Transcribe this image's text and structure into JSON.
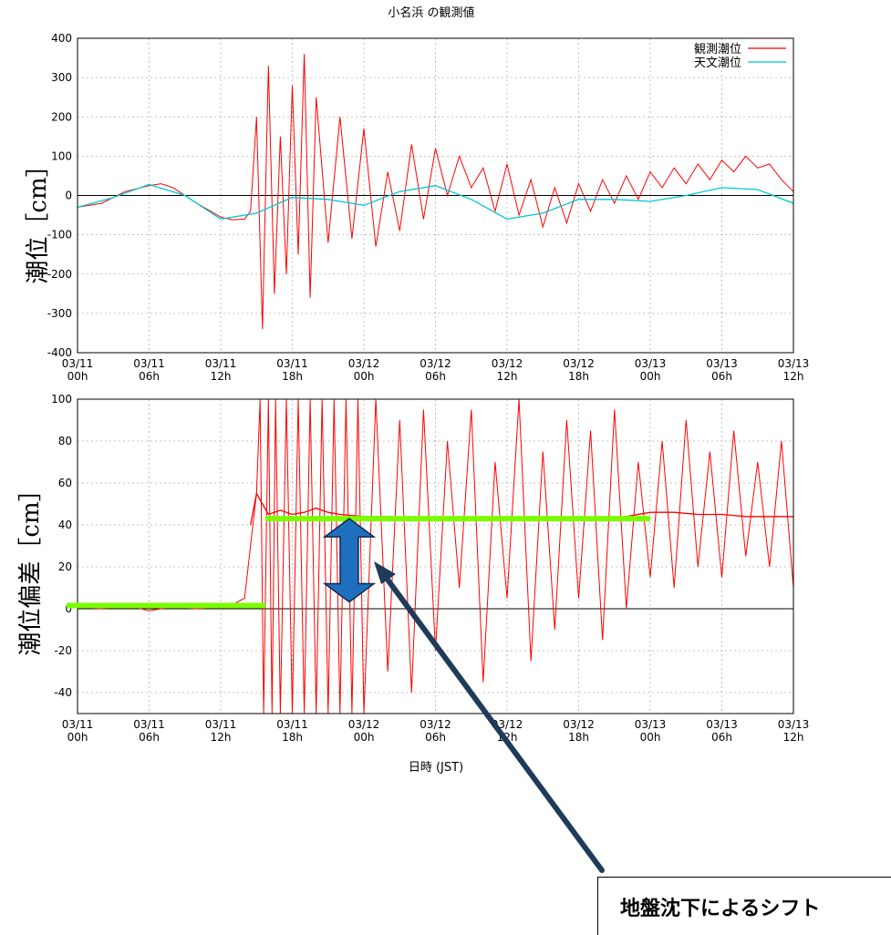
{
  "page_title": "小名浜 の観測値",
  "xlabel": "日時 (JST)",
  "callout_text": "地盤沈下によるシフト",
  "colors": {
    "observed": "#ff0000",
    "astronomical": "#00c8d2",
    "baseline": "#7cfc00",
    "arrow": "#1f6fbf",
    "pointer": "#1f3b5a"
  },
  "chart_data": [
    {
      "type": "line",
      "ylabel": "潮位［cm］",
      "ylim": [
        -400,
        400
      ],
      "yticks": [
        "400",
        "300",
        "200",
        "100",
        "0",
        "-100",
        "-200",
        "-300",
        "-400"
      ],
      "yticks_values": [
        400,
        300,
        200,
        100,
        0,
        -100,
        -200,
        -300,
        -400
      ],
      "xlim_hours": [
        0,
        60
      ],
      "xticks": [
        "03/11 00h",
        "03/11 06h",
        "03/11 12h",
        "03/11 18h",
        "03/12 00h",
        "03/12 06h",
        "03/12 12h",
        "03/12 18h",
        "03/13 00h",
        "03/13 06h",
        "03/13 12h"
      ],
      "grid": true,
      "legend_position": "top-right",
      "series": [
        {
          "name": "観測潮位",
          "color": "#ff0000",
          "x_hours": [
            0,
            2,
            4,
            6,
            7,
            8,
            10,
            12,
            13,
            14,
            14.5,
            15,
            15.5,
            16,
            16.5,
            17,
            17.5,
            18,
            18.5,
            19,
            19.5,
            20,
            21,
            22,
            23,
            24,
            25,
            26,
            27,
            28,
            29,
            30,
            31,
            32,
            33,
            34,
            35,
            36,
            37,
            38,
            39,
            40,
            41,
            42,
            43,
            44,
            45,
            46,
            47,
            48,
            49,
            50,
            51,
            52,
            53,
            54,
            55,
            56,
            57,
            58,
            59,
            60
          ],
          "values": [
            -30,
            -20,
            10,
            25,
            30,
            20,
            -20,
            -55,
            -62,
            -60,
            -40,
            200,
            -340,
            330,
            -250,
            150,
            -200,
            280,
            -150,
            360,
            -260,
            250,
            -120,
            200,
            -110,
            170,
            -130,
            60,
            -90,
            130,
            -60,
            120,
            0,
            100,
            20,
            70,
            -40,
            80,
            -50,
            40,
            -80,
            20,
            -70,
            30,
            -40,
            40,
            -20,
            50,
            -10,
            60,
            20,
            70,
            30,
            80,
            40,
            90,
            60,
            100,
            70,
            80,
            40,
            10
          ]
        },
        {
          "name": "天文潮位",
          "color": "#00c8d2",
          "x_hours": [
            0,
            3,
            6,
            9,
            12,
            15,
            18,
            21,
            24,
            27,
            30,
            33,
            36,
            39,
            42,
            45,
            48,
            51,
            54,
            57,
            60
          ],
          "values": [
            -30,
            -5,
            28,
            0,
            -60,
            -45,
            -5,
            -10,
            -25,
            10,
            25,
            -10,
            -60,
            -45,
            -10,
            -10,
            -15,
            0,
            20,
            15,
            -20
          ]
        }
      ]
    },
    {
      "type": "line",
      "ylabel": "潮位偏差［cm］",
      "ylim": [
        -50,
        100
      ],
      "yticks": [
        "100",
        "80",
        "60",
        "40",
        "20",
        "0",
        "-20",
        "-40"
      ],
      "yticks_values": [
        100,
        80,
        60,
        40,
        20,
        0,
        -20,
        -40
      ],
      "xlim_hours": [
        0,
        60
      ],
      "xticks": [
        "03/11 00h",
        "03/11 06h",
        "03/11 12h",
        "03/11 18h",
        "03/12 00h",
        "03/12 06h",
        "03/12 12h",
        "03/12 18h",
        "03/13 00h",
        "03/13 06h",
        "03/13 12h"
      ],
      "grid": true,
      "series": [
        {
          "name": "",
          "color": "#ff0000",
          "x_hours": [
            0,
            2,
            4,
            6,
            8,
            10,
            12,
            13,
            14,
            14.3,
            14.6,
            15,
            15.3,
            15.6,
            16,
            16.3,
            16.6,
            17,
            17.5,
            18,
            18.5,
            19,
            19.5,
            20,
            20.5,
            21,
            21.5,
            22,
            22.5,
            23,
            23.5,
            24,
            25,
            26,
            27,
            28,
            29,
            30,
            31,
            32,
            33,
            34,
            35,
            36,
            37,
            38,
            39,
            40,
            41,
            42,
            43,
            44,
            45,
            46,
            47,
            48,
            49,
            50,
            51,
            52,
            53,
            54,
            55,
            56,
            57,
            58,
            59,
            60
          ],
          "values": [
            1,
            0,
            2,
            -1,
            1,
            0,
            1,
            2,
            5,
            20,
            35,
            55,
            100,
            -50,
            100,
            -50,
            100,
            -50,
            100,
            -50,
            100,
            -50,
            100,
            -50,
            100,
            -50,
            100,
            -50,
            100,
            -50,
            100,
            -50,
            100,
            -30,
            90,
            -40,
            95,
            -20,
            80,
            10,
            95,
            -35,
            70,
            5,
            100,
            -25,
            75,
            -10,
            90,
            5,
            85,
            -15,
            95,
            0,
            70,
            15,
            80,
            10,
            90,
            20,
            75,
            15,
            85,
            25,
            70,
            20,
            80,
            10
          ]
        },
        {
          "name": "",
          "color": "#ff0000",
          "x_hours": [
            14.5,
            15,
            15.5,
            16,
            17,
            18,
            19,
            20,
            21,
            22,
            24,
            26,
            28,
            30,
            32,
            34,
            36,
            38,
            40,
            42,
            44,
            46,
            48,
            50,
            52,
            54,
            56,
            58,
            60
          ],
          "values": [
            40,
            55,
            50,
            45,
            47,
            45,
            46,
            48,
            46,
            45,
            44,
            44,
            43,
            43,
            43,
            43,
            43,
            43,
            43,
            43,
            43,
            44,
            46,
            46,
            45,
            45,
            44,
            44,
            44
          ]
        }
      ],
      "baseline_shift": {
        "before_value": 1.5,
        "before_x": [
          0,
          16.5
        ],
        "after_value": 43,
        "after_x": [
          16.5,
          48
        ]
      }
    }
  ]
}
